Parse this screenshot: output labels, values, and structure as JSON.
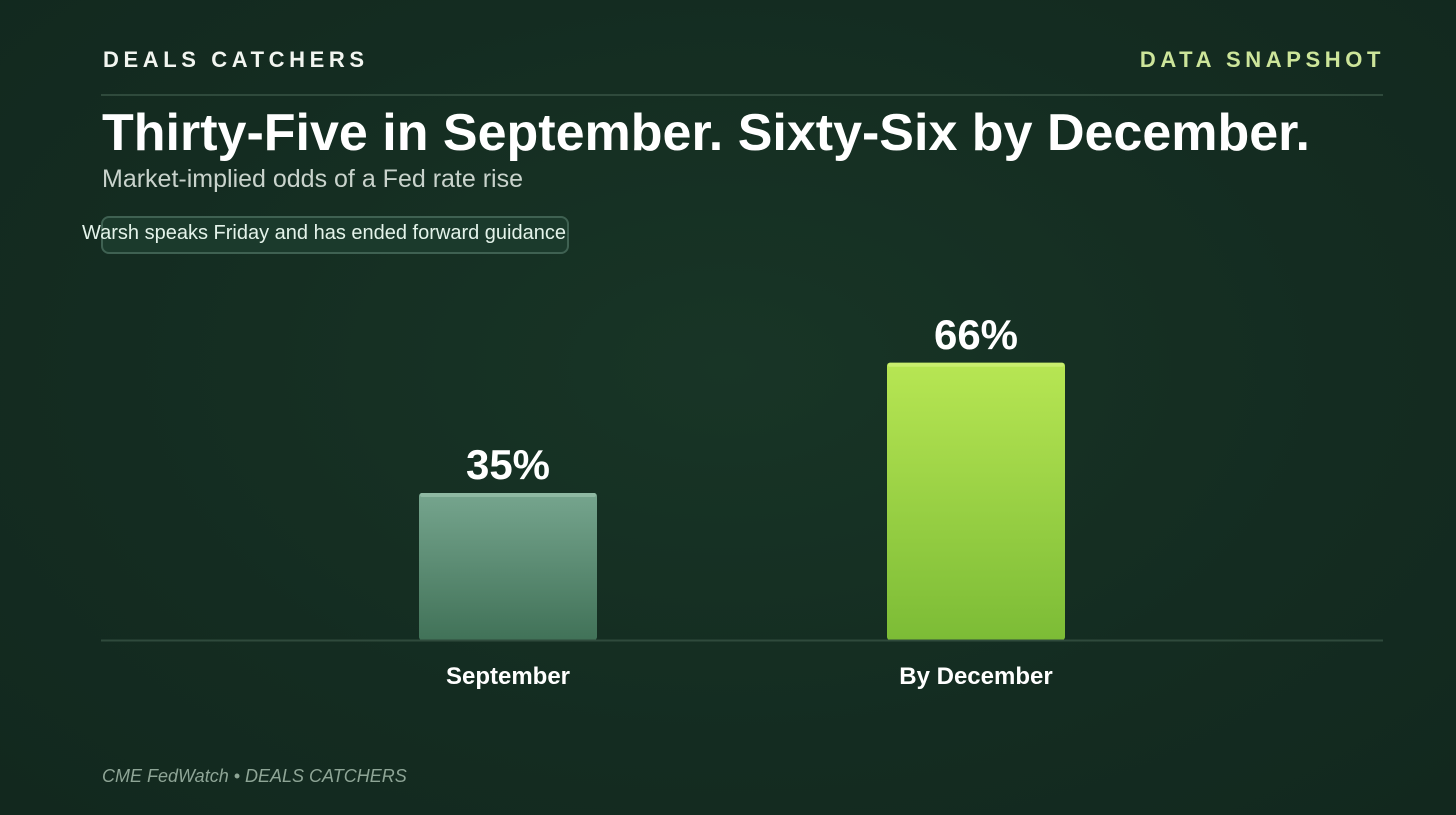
{
  "header": {
    "brand": "DEALS CATCHERS",
    "tag": "DATA SNAPSHOT"
  },
  "headline": {
    "title": "Thirty-Five in September. Sixty-Six by December.",
    "subtitle": "Market-implied odds of a Fed rate rise",
    "note": "Warsh speaks Friday and has ended forward guidance"
  },
  "chart_data": {
    "type": "bar",
    "title": "Thirty-Five in September. Sixty-Six by December.",
    "subtitle": "Market-implied odds of a Fed rate rise",
    "categories": [
      "September",
      "By December"
    ],
    "values": [
      35,
      66
    ],
    "value_labels": [
      "35%",
      "66%"
    ],
    "unit": "%",
    "ylim": [
      0,
      100
    ],
    "grid": false,
    "colors": [
      "#5e9a80",
      "#a8dd4c"
    ]
  },
  "footer": {
    "source": "CME FedWatch • DEALS CATCHERS"
  },
  "colors": {
    "background": "#142c21",
    "accent": "#cde59a",
    "bar_muted": "#5e9a80",
    "bar_highlight": "#a8dd4c"
  }
}
